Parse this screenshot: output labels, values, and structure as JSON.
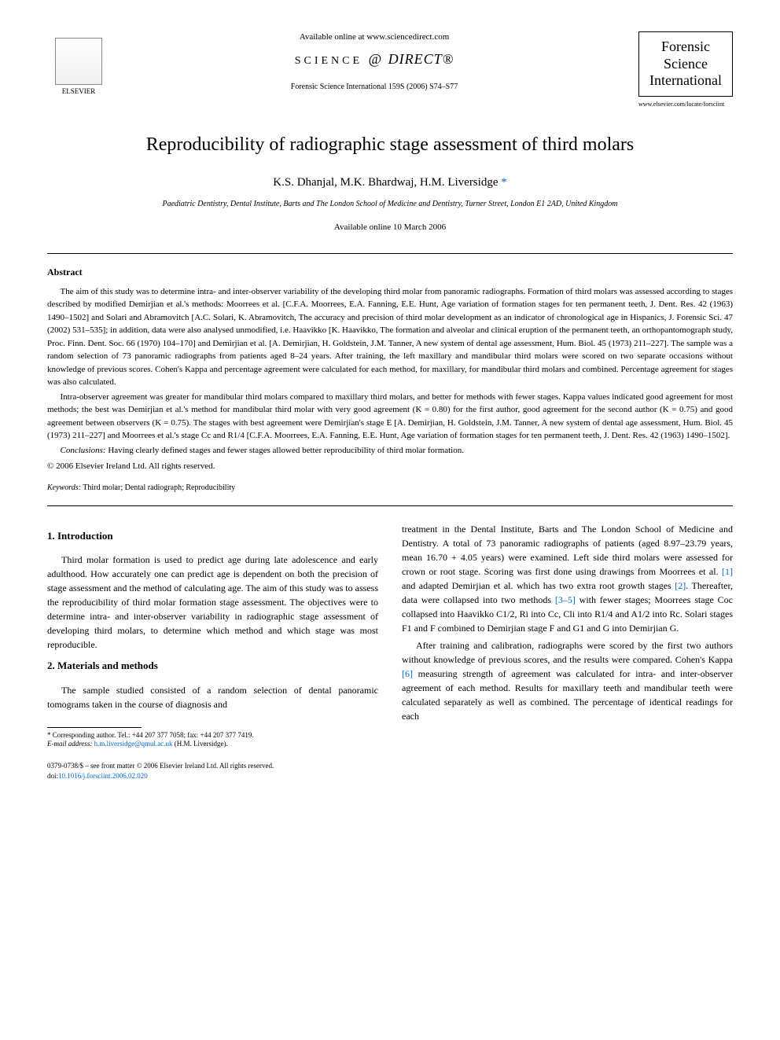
{
  "header": {
    "available_online": "Available online at www.sciencedirect.com",
    "sciencedirect_text": "SCIENCE",
    "sciencedirect_direct": "DIRECT®",
    "citation": "Forensic Science International 159S (2006) S74–S77",
    "publisher_name": "ELSEVIER",
    "journal_name_1": "Forensic",
    "journal_name_2": "Science",
    "journal_name_3": "International",
    "journal_url": "www.elsevier.com/locate/forsciint"
  },
  "article": {
    "title": "Reproducibility of radiographic stage assessment of third molars",
    "authors": "K.S. Dhanjal, M.K. Bhardwaj, H.M. Liversidge",
    "corresponding_mark": "*",
    "affiliation": "Paediatric Dentistry, Dental Institute, Barts and The London School of Medicine and Dentistry, Turner Street, London E1 2AD, United Kingdom",
    "date_available": "Available online 10 March 2006"
  },
  "abstract": {
    "heading": "Abstract",
    "para1": "The aim of this study was to determine intra- and inter-observer variability of the developing third molar from panoramic radiographs. Formation of third molars was assessed according to stages described by modified Demirjian et al.'s methods: Moorrees et al. [C.F.A. Moorrees, E.A. Fanning, E.E. Hunt, Age variation of formation stages for ten permanent teeth, J. Dent. Res. 42 (1963) 1490–1502] and Solari and Abramovitch [A.C. Solari, K. Abramovitch, The accuracy and precision of third molar development as an indicator of chronological age in Hispanics, J. Forensic Sci. 47 (2002) 531–535]; in addition, data were also analysed unmodified, i.e. Haavikko [K. Haavikko, The formation and alveolar and clinical eruption of the permanent teeth, an orthopantomograph study, Proc. Finn. Dent. Soc. 66 (1970) 104–170] and Demirjian et al. [A. Demirjian, H. Goldstein, J.M. Tanner, A new system of dental age assessment, Hum. Biol. 45 (1973) 211–227]. The sample was a random selection of 73 panoramic radiographs from patients aged 8–24 years. After training, the left maxillary and mandibular third molars were scored on two separate occasions without knowledge of previous scores. Cohen's Kappa and percentage agreement were calculated for each method, for maxillary, for mandibular third molars and combined. Percentage agreement for stages was also calculated.",
    "para2": "Intra-observer agreement was greater for mandibular third molars compared to maxillary third molars, and better for methods with fewer stages. Kappa values indicated good agreement for most methods; the best was Demirjian et al.'s method for mandibular third molar with very good agreement (K = 0.80) for the first author, good agreement for the second author (K = 0.75) and good agreement between observers (K = 0.75). The stages with best agreement were Demirjian's stage E [A. Demirjian, H. Goldstein, J.M. Tanner, A new system of dental age assessment, Hum. Biol. 45 (1973) 211–227] and Moorrees et al.'s stage Cc and R1/4 [C.F.A. Moorrees, E.A. Fanning, E.E. Hunt, Age variation of formation stages for ten permanent teeth, J. Dent. Res. 42 (1963) 1490–1502].",
    "conclusions_label": "Conclusions:",
    "conclusions_text": " Having clearly defined stages and fewer stages allowed better reproducibility of third molar formation.",
    "copyright": "© 2006 Elsevier Ireland Ltd. All rights reserved.",
    "keywords_label": "Keywords:",
    "keywords_text": " Third molar; Dental radiograph; Reproducibility"
  },
  "sections": {
    "intro_heading": "1. Introduction",
    "intro_text": "Third molar formation is used to predict age during late adolescence and early adulthood. How accurately one can predict age is dependent on both the precision of stage assessment and the method of calculating age. The aim of this study was to assess the reproducibility of third molar formation stage assessment. The objectives were to determine intra- and inter-observer variability in radiographic stage assessment of developing third molars, to determine which method and which stage was most reproducible.",
    "methods_heading": "2. Materials and methods",
    "methods_para1": "The sample studied consisted of a random selection of dental panoramic tomograms taken in the course of diagnosis and",
    "methods_para2_start": "treatment in the Dental Institute, Barts and The London School of Medicine and Dentistry. A total of 73 panoramic radiographs of patients (aged 8.97–23.79 years, mean 16.70 + 4.05 years) were examined. Left side third molars were assessed for crown or root stage. Scoring was first done using drawings from Moorrees et al. ",
    "ref1": "[1]",
    "methods_para2_mid1": " and adapted Demirjian et al. which has two extra root growth stages ",
    "ref2": "[2]",
    "methods_para2_mid2": ". Thereafter, data were collapsed into two methods ",
    "ref35": "[3–5]",
    "methods_para2_end": " with fewer stages; Moorrees stage Coc collapsed into Haavikko C1/2, Ri into Cc, Cli into R1/4 and A1/2 into Rc. Solari stages F1 and F combined to Demirjian stage F and G1 and G into Demirjian G.",
    "methods_para3_start": "After training and calibration, radiographs were scored by the first two authors without knowledge of previous scores, and the results were compared. Cohen's Kappa ",
    "ref6": "[6]",
    "methods_para3_end": " measuring strength of agreement was calculated for intra- and inter-observer agreement of each method. Results for maxillary teeth and mandibular teeth were calculated separately as well as combined. The percentage of identical readings for each"
  },
  "footer": {
    "corresponding_label": "* Corresponding author. Tel.: +44 207 377 7058; fax: +44 207 377 7419.",
    "email_label": "E-mail address:",
    "email": " h.m.liversidge@qmul.ac.uk",
    "email_suffix": " (H.M. Liversidge).",
    "issn_line": "0379-0738/$ – see front matter © 2006 Elsevier Ireland Ltd. All rights reserved.",
    "doi_label": "doi:",
    "doi": "10.1016/j.forsciint.2006.02.020"
  },
  "colors": {
    "link_color": "#0066cc",
    "text_color": "#000000",
    "background": "#ffffff"
  }
}
